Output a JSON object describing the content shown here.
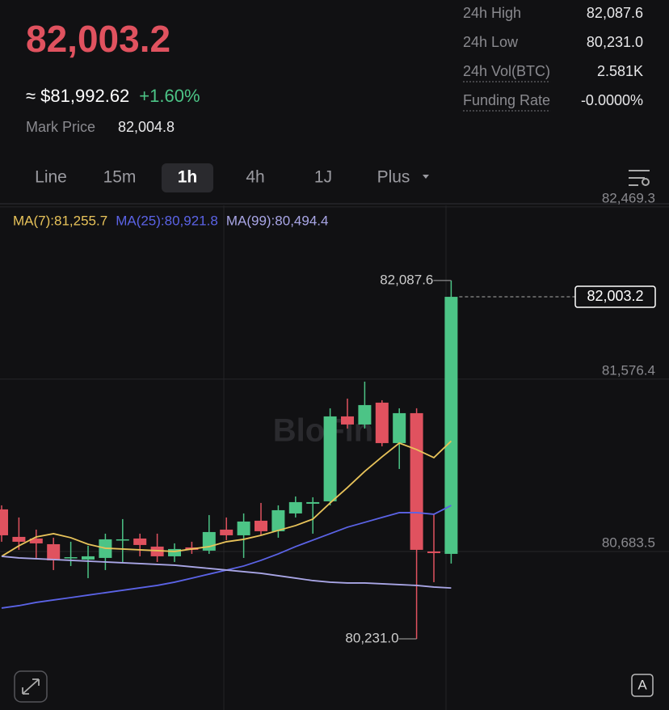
{
  "header": {
    "price": "82,003.2",
    "approx": "≈ $81,992.62",
    "change": "+1.60%",
    "mark_label": "Mark Price",
    "mark_value": "82,004.8"
  },
  "stats": [
    {
      "label": "24h High",
      "value": "82,087.6",
      "dotted": false
    },
    {
      "label": "24h Low",
      "value": "80,231.0",
      "dotted": false
    },
    {
      "label": "24h Vol(BTC)",
      "value": "2.581K",
      "dotted": true
    },
    {
      "label": "Funding Rate",
      "value": "-0.0000%",
      "dotted": true
    }
  ],
  "tabs": [
    {
      "label": "Line",
      "active": false
    },
    {
      "label": "15m",
      "active": false
    },
    {
      "label": "1h",
      "active": true
    },
    {
      "label": "4h",
      "active": false
    },
    {
      "label": "1J",
      "active": false
    },
    {
      "label": "Plus",
      "active": false
    }
  ],
  "toolbar": {
    "auto_label": "A"
  },
  "chart_data": {
    "type": "candlestick",
    "watermark": "BloFin",
    "up_color": "#4cc486",
    "down_color": "#e0525f",
    "open": [
      80901.6,
      80759.1,
      80750.7,
      80721.3,
      80650.1,
      80641.7,
      80650.1,
      80740.0,
      80750.7,
      80708.8,
      80658.5,
      80704.6,
      80687.8,
      80796.8,
      80767.4,
      80842.9,
      80788.4,
      80880.6,
      80930.9,
      80943.5,
      81383.5,
      81341.6,
      81454.8,
      81245.2,
      81400.3,
      80683.6,
      80671.1
    ],
    "high": [
      80922.5,
      80859.7,
      80796.8,
      80754.9,
      80733.9,
      80713.0,
      80775.8,
      80851.3,
      80775.8,
      80775.8,
      80725.5,
      80733.9,
      80872.2,
      80859.7,
      80880.6,
      80935.1,
      80922.5,
      80968.6,
      80964.4,
      81425.4,
      81475.7,
      81563.7,
      81467.3,
      81425.4,
      81425.4,
      80880.6,
      82087.6
    ],
    "low": [
      80733.9,
      80692.0,
      80650.1,
      80587.2,
      80608.2,
      80545.3,
      80587.2,
      80629.1,
      80658.5,
      80629.1,
      80629.1,
      80671.1,
      80671.1,
      80742.3,
      80650.1,
      80767.4,
      80754.9,
      80859.7,
      80775.8,
      80922.5,
      81320.7,
      81320.7,
      81228.5,
      81111.1,
      80231.0,
      80524.4,
      80620.8
    ],
    "close": [
      80767.4,
      80733.9,
      80725.5,
      80637.5,
      80654.0,
      80658.5,
      80746.5,
      80746.5,
      80717.2,
      80658.5,
      80696.2,
      80692.0,
      80784.2,
      80767.4,
      80838.7,
      80788.4,
      80897.4,
      80939.3,
      80939.3,
      81383.5,
      81341.6,
      81442.2,
      81245.2,
      81400.3,
      80692.0,
      80675.2,
      82003.2
    ],
    "series": [
      {
        "name": "MA(7):81,255.7",
        "color": "#e8c35a",
        "values": [
          80658.5,
          80713.0,
          80759.1,
          80775.8,
          80754.9,
          80721.3,
          80700.4,
          80696.2,
          80692.0,
          80687.8,
          80683.6,
          80696.2,
          80708.8,
          80733.9,
          80746.5,
          80767.4,
          80792.6,
          80817.7,
          80851.3,
          80935.1,
          81014.7,
          81098.5,
          81174.0,
          81245.2,
          81211.7,
          81169.8,
          81255.7
        ]
      },
      {
        "name": "MA(25):80,921.8",
        "color": "#5b63e6",
        "values": [
          80390.3,
          80402.8,
          80419.6,
          80432.2,
          80444.7,
          80457.3,
          80469.9,
          80482.5,
          80495.0,
          80507.6,
          80524.4,
          80545.3,
          80566.3,
          80587.2,
          80608.2,
          80637.5,
          80671.1,
          80708.8,
          80742.3,
          80775.8,
          80809.4,
          80834.5,
          80859.7,
          80884.8,
          80884.8,
          80876.4,
          80921.8
        ]
      },
      {
        "name": "MA(99):80,494.4",
        "color": "#a9a6e6",
        "values": [
          80658.5,
          80650.1,
          80645.9,
          80641.7,
          80637.5,
          80633.3,
          80629.1,
          80625.0,
          80620.8,
          80616.6,
          80612.4,
          80604.0,
          80595.6,
          80587.2,
          80578.8,
          80570.5,
          80557.9,
          80545.3,
          80532.7,
          80524.4,
          80520.2,
          80520.2,
          80516.0,
          80511.8,
          80507.6,
          80499.2,
          80494.4
        ]
      }
    ],
    "ylim": [
      79862,
      82477
    ],
    "yticks": [
      {
        "value": 80683.5,
        "label": "80,683.5"
      },
      {
        "value": 81576.4,
        "label": "81,576.4"
      },
      {
        "value": 82469.3,
        "label": "82,469.3"
      }
    ],
    "high_label": "82,087.6",
    "low_label": "80,231.0",
    "last_label": "82,003.2",
    "grid": true
  }
}
